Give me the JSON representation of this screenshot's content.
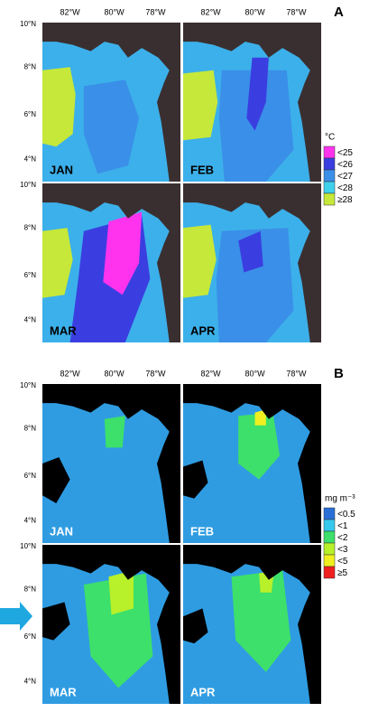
{
  "panels": [
    {
      "label": "A",
      "x_labels": [
        [
          "82°W",
          "80°W",
          "78°W"
        ],
        [
          "82°W",
          "80°W",
          "78°W"
        ]
      ],
      "y_labels": [
        [
          "10°N",
          "8°N",
          "6°N",
          "4°N"
        ],
        [
          "10°N",
          "8°N",
          "6°N",
          "4°N"
        ]
      ],
      "maps": [
        "JAN",
        "FEB",
        "MAR",
        "APR"
      ],
      "legend": {
        "title": "°C",
        "entries": [
          {
            "label": "<25",
            "color": "#ff33ee"
          },
          {
            "label": "<26",
            "color": "#3a3ee0"
          },
          {
            "label": "<27",
            "color": "#3a8fe8"
          },
          {
            "label": "<28",
            "color": "#3fd0ec"
          },
          {
            "label": "≥28",
            "color": "#c6e83a"
          }
        ]
      }
    },
    {
      "label": "B",
      "x_labels": [
        [
          "82°W",
          "80°W",
          "78°W"
        ],
        [
          "82°W",
          "80°W",
          "78°W"
        ]
      ],
      "y_labels": [
        [
          "10°N",
          "8°N",
          "6°N",
          "4°N"
        ],
        [
          "10°N",
          "8°N",
          "6°N",
          "4°N"
        ]
      ],
      "maps": [
        "JAN",
        "FEB",
        "MAR",
        "APR"
      ],
      "legend": {
        "title": "mg m⁻³",
        "entries": [
          {
            "label": "<0.5",
            "color": "#2a6fd8"
          },
          {
            "label": "<1",
            "color": "#35c8ec"
          },
          {
            "label": "<2",
            "color": "#3de06a"
          },
          {
            "label": "<3",
            "color": "#b8f02a"
          },
          {
            "label": "<5",
            "color": "#f0f020"
          },
          {
            "label": "≥5",
            "color": "#ee2020"
          }
        ]
      }
    }
  ]
}
